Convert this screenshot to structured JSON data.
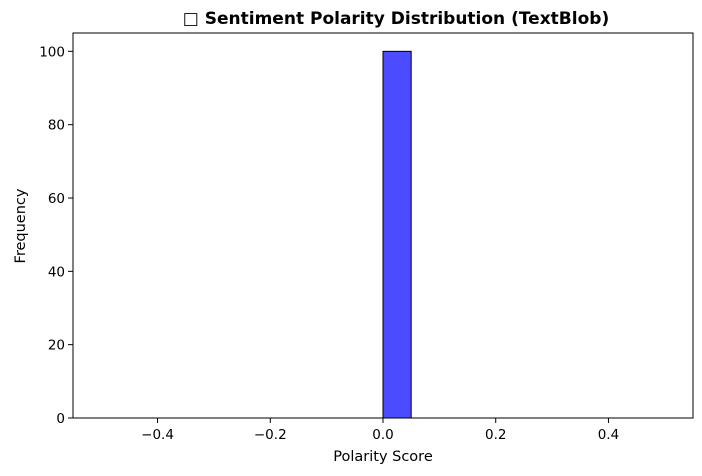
{
  "chart_data": {
    "type": "bar",
    "title": "□ Sentiment Polarity Distribution (TextBlob)",
    "xlabel": "Polarity Score",
    "ylabel": "Frequency",
    "xlim": [
      -0.55,
      0.55
    ],
    "ylim": [
      0,
      105
    ],
    "x_ticks": [
      -0.4,
      -0.2,
      0.0,
      0.2,
      0.4
    ],
    "x_tick_labels": [
      "−0.4",
      "−0.2",
      "0.0",
      "0.2",
      "0.4"
    ],
    "y_ticks": [
      0,
      20,
      40,
      60,
      80,
      100
    ],
    "y_tick_labels": [
      "0",
      "20",
      "40",
      "60",
      "80",
      "100"
    ],
    "bins": [
      {
        "x0": -0.5,
        "x1": -0.45,
        "count": 0
      },
      {
        "x0": -0.45,
        "x1": -0.4,
        "count": 0
      },
      {
        "x0": -0.4,
        "x1": -0.35,
        "count": 0
      },
      {
        "x0": -0.35,
        "x1": -0.3,
        "count": 0
      },
      {
        "x0": -0.3,
        "x1": -0.25,
        "count": 0
      },
      {
        "x0": -0.25,
        "x1": -0.2,
        "count": 0
      },
      {
        "x0": -0.2,
        "x1": -0.15,
        "count": 0
      },
      {
        "x0": -0.15,
        "x1": -0.1,
        "count": 0
      },
      {
        "x0": -0.1,
        "x1": -0.05,
        "count": 0
      },
      {
        "x0": -0.05,
        "x1": 0.0,
        "count": 0
      },
      {
        "x0": 0.0,
        "x1": 0.05,
        "count": 100
      },
      {
        "x0": 0.05,
        "x1": 0.1,
        "count": 0
      },
      {
        "x0": 0.1,
        "x1": 0.15,
        "count": 0
      },
      {
        "x0": 0.15,
        "x1": 0.2,
        "count": 0
      },
      {
        "x0": 0.2,
        "x1": 0.25,
        "count": 0
      },
      {
        "x0": 0.25,
        "x1": 0.3,
        "count": 0
      },
      {
        "x0": 0.3,
        "x1": 0.35,
        "count": 0
      },
      {
        "x0": 0.35,
        "x1": 0.4,
        "count": 0
      },
      {
        "x0": 0.4,
        "x1": 0.45,
        "count": 0
      },
      {
        "x0": 0.45,
        "x1": 0.5,
        "count": 0
      }
    ],
    "bar_color": "#4b4bff",
    "bar_edge_color": "#000000",
    "grid": false,
    "legend": "none"
  }
}
